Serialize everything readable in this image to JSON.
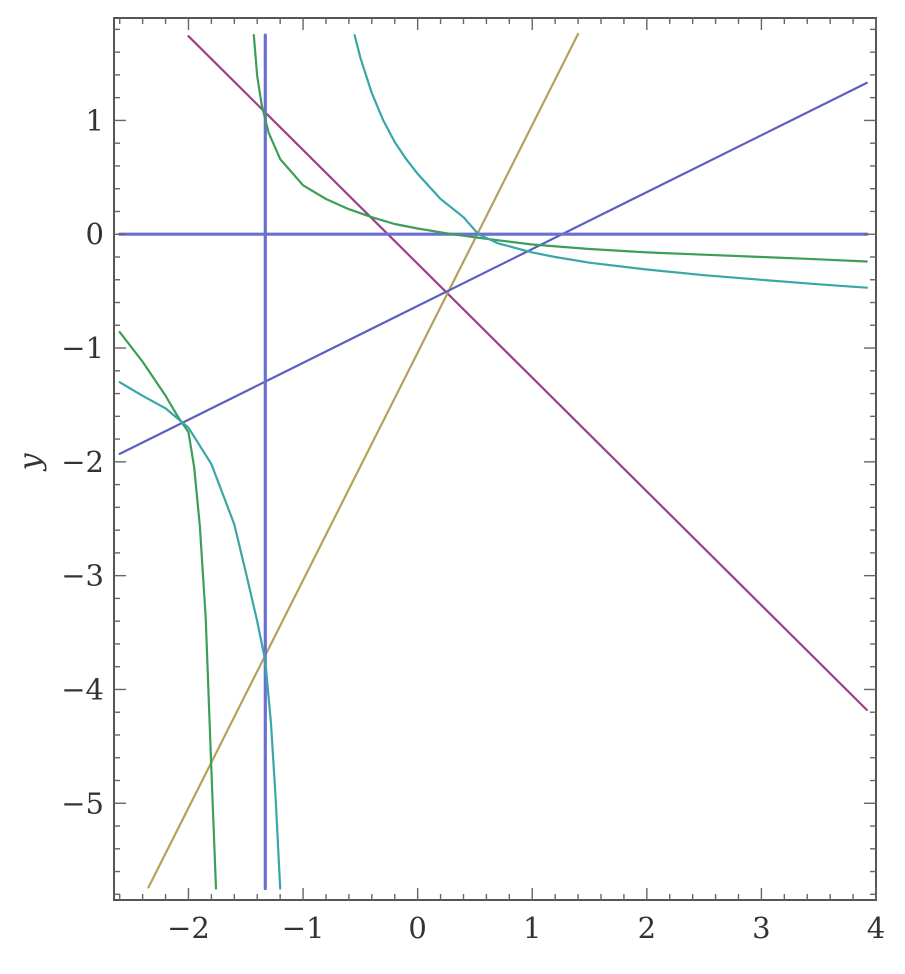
{
  "chart_data": {
    "type": "line",
    "title": "",
    "xlabel": "",
    "ylabel": "y",
    "xlim": [
      -2.65,
      4.0
    ],
    "ylim": [
      -5.85,
      1.9
    ],
    "grid": false,
    "legend": "none",
    "x_ticks": [
      {
        "value": -2,
        "label": "−2"
      },
      {
        "value": -1,
        "label": "−1"
      },
      {
        "value": 0,
        "label": "0"
      },
      {
        "value": 1,
        "label": "1"
      },
      {
        "value": 2,
        "label": "2"
      },
      {
        "value": 3,
        "label": "3"
      },
      {
        "value": 4,
        "label": "4"
      }
    ],
    "y_ticks": [
      {
        "value": 1,
        "label": "1"
      },
      {
        "value": 0,
        "label": "0"
      },
      {
        "value": -1,
        "label": "−1"
      },
      {
        "value": -2,
        "label": "−2"
      },
      {
        "value": -3,
        "label": "−3"
      },
      {
        "value": -4,
        "label": "−4"
      },
      {
        "value": -5,
        "label": "−5"
      }
    ],
    "series": [
      {
        "color": "#9c3f86",
        "x": [
          -2.0,
          3.92
        ],
        "y": [
          1.74,
          -4.18
        ]
      },
      {
        "color": "#b5a15a",
        "x": [
          -2.35,
          1.4
        ],
        "y": [
          -5.74,
          1.76
        ]
      },
      {
        "color": "#5b5fc4",
        "x": [
          -2.6,
          3.92
        ],
        "y": [
          -1.93,
          1.33
        ]
      },
      {
        "color": "#6a70d0",
        "x": [
          -2.6,
          3.92
        ],
        "y": [
          0.0,
          0.0
        ]
      },
      {
        "color": "#6a70d0",
        "x": [
          -1.33,
          -1.33
        ],
        "y": [
          -5.75,
          1.75
        ]
      },
      {
        "color": "#3d9e58",
        "x": [
          -1.43,
          -1.4,
          -1.36,
          -1.3,
          -1.2,
          -1.0,
          -0.8,
          -0.6,
          -0.4,
          -0.2,
          0.0,
          0.3,
          0.6,
          1.0,
          1.5,
          2.0,
          2.5,
          3.0,
          3.5,
          3.92
        ],
        "y": [
          1.75,
          1.39,
          1.13,
          0.89,
          0.66,
          0.43,
          0.31,
          0.22,
          0.15,
          0.09,
          0.05,
          0.0,
          -0.04,
          -0.09,
          -0.13,
          -0.16,
          -0.18,
          -0.2,
          -0.22,
          -0.24
        ]
      },
      {
        "color": "#3d9e58",
        "x": [
          -2.6,
          -2.5,
          -2.4,
          -2.3,
          -2.2,
          -2.1,
          -2.0,
          -1.95,
          -1.9,
          -1.85,
          -1.8,
          -1.76
        ],
        "y": [
          -0.86,
          -0.99,
          -1.12,
          -1.27,
          -1.42,
          -1.59,
          -1.74,
          -2.05,
          -2.57,
          -3.37,
          -4.71,
          -5.75
        ]
      },
      {
        "color": "#3aa6a8",
        "x": [
          -0.55,
          -0.5,
          -0.4,
          -0.3,
          -0.2,
          -0.1,
          0.0,
          0.2,
          0.4,
          0.53,
          0.7,
          1.0,
          1.2,
          1.5,
          2.0,
          2.5,
          3.0,
          3.5,
          3.92
        ],
        "y": [
          1.75,
          1.55,
          1.24,
          1.0,
          0.81,
          0.66,
          0.53,
          0.31,
          0.15,
          0.0,
          -0.08,
          -0.16,
          -0.2,
          -0.25,
          -0.31,
          -0.36,
          -0.4,
          -0.44,
          -0.47
        ]
      },
      {
        "color": "#3aa6a8",
        "x": [
          -2.6,
          -2.4,
          -2.2,
          -2.0,
          -1.8,
          -1.6,
          -1.5,
          -1.4,
          -1.33,
          -1.28,
          -1.24,
          -1.2
        ],
        "y": [
          -1.3,
          -1.42,
          -1.53,
          -1.7,
          -2.02,
          -2.55,
          -2.97,
          -3.4,
          -3.75,
          -4.3,
          -4.95,
          -5.75
        ]
      }
    ]
  }
}
